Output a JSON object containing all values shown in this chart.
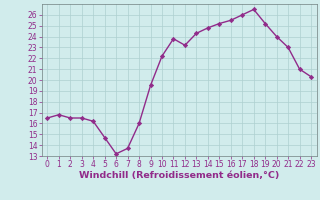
{
  "hours": [
    0,
    1,
    2,
    3,
    4,
    5,
    6,
    7,
    8,
    9,
    10,
    11,
    12,
    13,
    14,
    15,
    16,
    17,
    18,
    19,
    20,
    21,
    22,
    23
  ],
  "values": [
    16.5,
    16.8,
    16.5,
    16.5,
    16.2,
    14.7,
    13.2,
    13.7,
    16.0,
    19.5,
    22.2,
    23.8,
    23.2,
    24.3,
    24.8,
    25.2,
    25.5,
    26.0,
    26.5,
    25.2,
    24.0,
    23.0,
    21.0,
    20.3
  ],
  "line_color": "#912b8a",
  "marker": "D",
  "markersize": 2.2,
  "linewidth": 1.0,
  "xlabel": "Windchill (Refroidissement éolien,°C)",
  "ylim": [
    13,
    27
  ],
  "yticks": [
    13,
    14,
    15,
    16,
    17,
    18,
    19,
    20,
    21,
    22,
    23,
    24,
    25,
    26
  ],
  "xticks": [
    0,
    1,
    2,
    3,
    4,
    5,
    6,
    7,
    8,
    9,
    10,
    11,
    12,
    13,
    14,
    15,
    16,
    17,
    18,
    19,
    20,
    21,
    22,
    23
  ],
  "bg_color": "#d1ecec",
  "grid_color": "#aed0d0",
  "tick_fontsize": 5.5,
  "xlabel_fontsize": 6.8
}
